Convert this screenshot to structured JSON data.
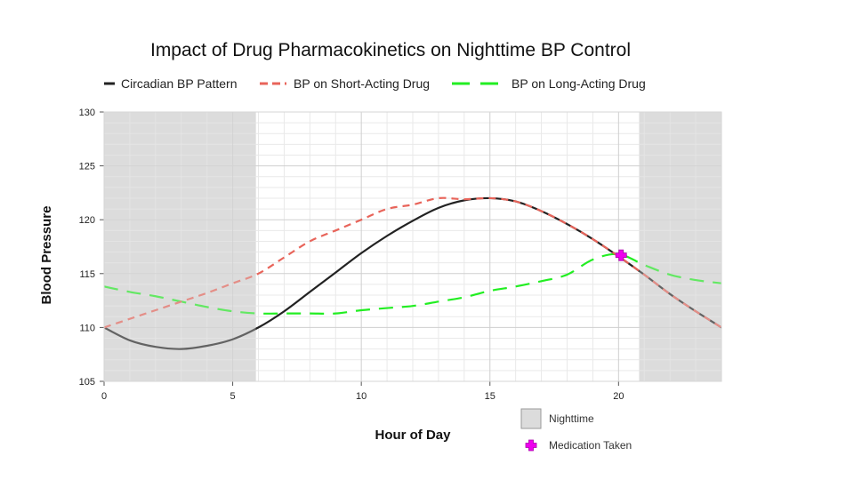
{
  "chart_data": {
    "type": "line",
    "title": "Impact of Drug Pharmacokinetics on Nighttime BP Control",
    "xlabel": "Hour of Day",
    "ylabel": "Blood Pressure",
    "xlim": [
      0,
      24
    ],
    "ylim": [
      105,
      130
    ],
    "x_ticks": [
      0,
      5,
      10,
      15,
      20
    ],
    "y_ticks": [
      105,
      110,
      115,
      120,
      125,
      130
    ],
    "grid": true,
    "legend_position": "top",
    "series": [
      {
        "name": "Circadian BP Pattern",
        "color": "#222222",
        "dash": "solid",
        "x": [
          0,
          1,
          2,
          3,
          4,
          5,
          6,
          7,
          8,
          9,
          10,
          11,
          12,
          13,
          14,
          15,
          16,
          17,
          18,
          19,
          20,
          21,
          22,
          23,
          24
        ],
        "values": [
          110,
          108.8,
          108.2,
          108.0,
          108.3,
          108.9,
          110.0,
          111.5,
          113.3,
          115.1,
          116.9,
          118.5,
          119.9,
          121.1,
          121.8,
          122.0,
          121.7,
          120.8,
          119.6,
          118.2,
          116.6,
          114.9,
          113.1,
          111.5,
          110.0
        ]
      },
      {
        "name": "BP on Short-Acting Drug",
        "color": "#e8645a",
        "dash": "dashed",
        "x": [
          0,
          1,
          2,
          3,
          4,
          5,
          6,
          7,
          8,
          9,
          10,
          11,
          12,
          13,
          14,
          15,
          16,
          17,
          18,
          19,
          20,
          21,
          22,
          23,
          24
        ],
        "values": [
          110.0,
          110.8,
          111.6,
          112.4,
          113.2,
          114.1,
          115.0,
          116.5,
          118.0,
          119.0,
          120.0,
          121.0,
          121.4,
          122.0,
          121.9,
          122.0,
          121.7,
          120.8,
          119.6,
          118.2,
          116.6,
          114.9,
          113.1,
          111.5,
          110.0
        ]
      },
      {
        "name": "BP on Long-Acting Drug",
        "color": "#22ee22",
        "dash": "longdash",
        "x": [
          0,
          1,
          2,
          3,
          4,
          5,
          6,
          7,
          8,
          9,
          10,
          11,
          12,
          13,
          14,
          15,
          16,
          17,
          18,
          19,
          20,
          21,
          22,
          23,
          24
        ],
        "values": [
          113.8,
          113.3,
          112.9,
          112.4,
          111.9,
          111.5,
          111.3,
          111.3,
          111.3,
          111.3,
          111.6,
          111.8,
          112.0,
          112.4,
          112.8,
          113.4,
          113.8,
          114.3,
          114.9,
          116.3,
          116.8,
          115.8,
          114.9,
          114.4,
          114.1
        ]
      }
    ],
    "shaded_regions": [
      {
        "label": "Nighttime",
        "x_start": 0,
        "x_end": 5.9
      },
      {
        "label": "Nighttime",
        "x_start": 20.8,
        "x_end": 24
      }
    ],
    "markers": [
      {
        "label": "Medication Taken",
        "x": 20.1,
        "y": 116.7,
        "color": "#ee00ee"
      }
    ],
    "key": [
      {
        "label": "Nighttime",
        "kind": "shade"
      },
      {
        "label": "Medication Taken",
        "kind": "marker"
      }
    ]
  }
}
